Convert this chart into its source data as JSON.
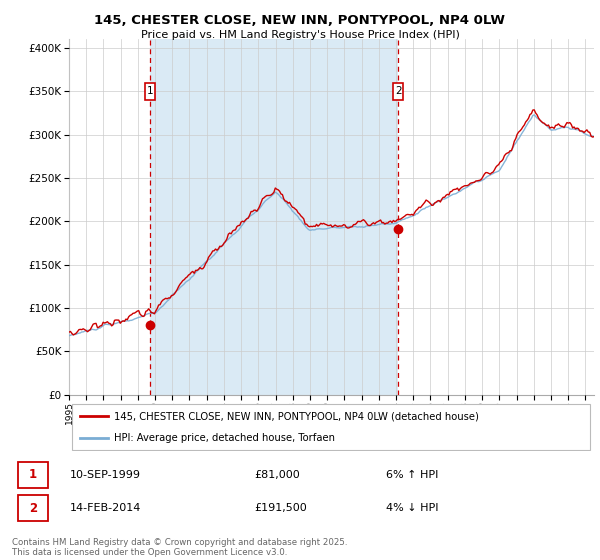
{
  "title": "145, CHESTER CLOSE, NEW INN, PONTYPOOL, NP4 0LW",
  "subtitle": "Price paid vs. HM Land Registry's House Price Index (HPI)",
  "legend_line1": "145, CHESTER CLOSE, NEW INN, PONTYPOOL, NP4 0LW (detached house)",
  "legend_line2": "HPI: Average price, detached house, Torfaen",
  "sale1_date": "10-SEP-1999",
  "sale1_price": "£81,000",
  "sale1_hpi": "6% ↑ HPI",
  "sale2_date": "14-FEB-2014",
  "sale2_price": "£191,500",
  "sale2_hpi": "4% ↓ HPI",
  "footer": "Contains HM Land Registry data © Crown copyright and database right 2025.\nThis data is licensed under the Open Government Licence v3.0.",
  "sale1_x": 1999.69,
  "sale2_x": 2014.12,
  "sale1_y": 81000,
  "sale2_y": 191500,
  "red_color": "#cc0000",
  "blue_color": "#7aadd4",
  "blue_fill": "#daeaf5",
  "vline_color": "#cc0000",
  "grid_color": "#cccccc",
  "bg_color": "#ffffff",
  "ylim": [
    0,
    410000
  ],
  "xlim_start": 1995,
  "xlim_end": 2025.5,
  "marker1_y": 350000,
  "marker2_y": 350000
}
